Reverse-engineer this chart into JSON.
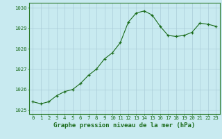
{
  "x": [
    0,
    1,
    2,
    3,
    4,
    5,
    6,
    7,
    8,
    9,
    10,
    11,
    12,
    13,
    14,
    15,
    16,
    17,
    18,
    19,
    20,
    21,
    22,
    23
  ],
  "y": [
    1025.4,
    1025.3,
    1025.4,
    1025.7,
    1025.9,
    1026.0,
    1026.3,
    1026.7,
    1027.0,
    1027.5,
    1027.8,
    1028.3,
    1029.3,
    1029.75,
    1029.85,
    1029.65,
    1029.1,
    1028.65,
    1028.6,
    1028.65,
    1028.8,
    1029.25,
    1029.2,
    1029.1
  ],
  "xlabel": "Graphe pression niveau de la mer (hPa)",
  "ylim": [
    1024.8,
    1030.25
  ],
  "yticks": [
    1025,
    1026,
    1027,
    1028,
    1029,
    1030
  ],
  "xticks": [
    0,
    1,
    2,
    3,
    4,
    5,
    6,
    7,
    8,
    9,
    10,
    11,
    12,
    13,
    14,
    15,
    16,
    17,
    18,
    19,
    20,
    21,
    22,
    23
  ],
  "line_color": "#1a6b1a",
  "marker_color": "#1a6b1a",
  "bg_color": "#c8eaf0",
  "grid_color": "#aaccd8",
  "axis_color": "#2a7a2a",
  "label_color": "#1a6b1a",
  "xlabel_fontsize": 6.5,
  "tick_fontsize": 5.2
}
